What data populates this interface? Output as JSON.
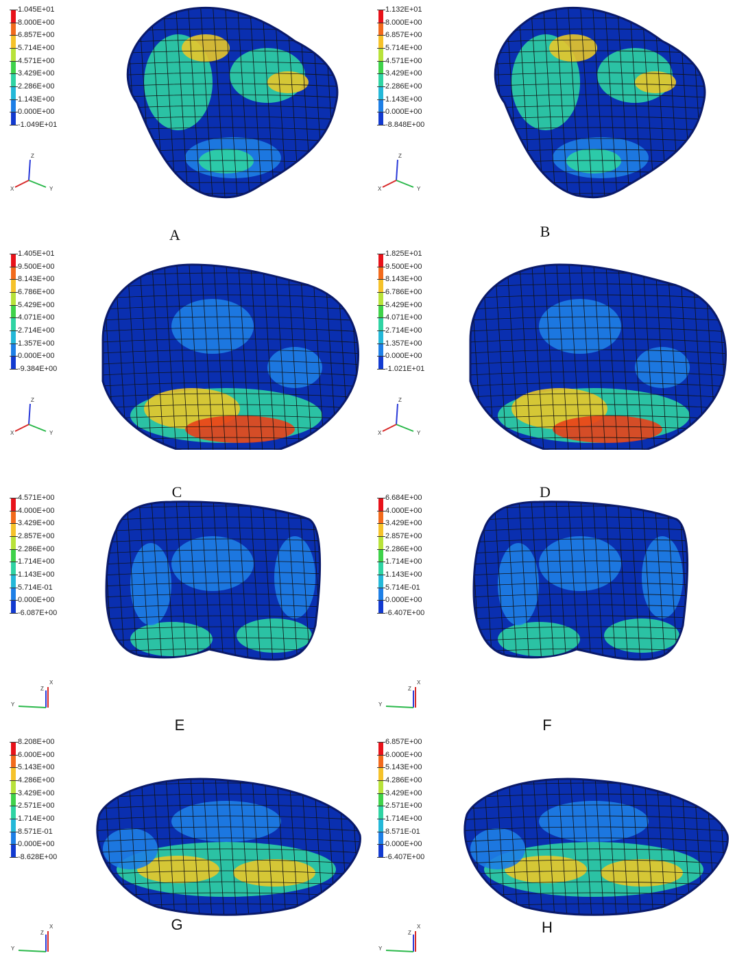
{
  "panels": [
    {
      "id": "A",
      "caption": "A",
      "caption_style": "serif",
      "view": "zy",
      "shape": "tilted",
      "legend": [
        "1.045E+01",
        "8.000E+00",
        "6.857E+00",
        "5.714E+00",
        "4.571E+00",
        "3.429E+00",
        "2.286E+00",
        "1.143E+00",
        "0.000E+00",
        "-1.049E+01"
      ]
    },
    {
      "id": "B",
      "caption": "B",
      "caption_style": "serif",
      "view": "zy",
      "shape": "tilted",
      "legend": [
        "1.132E+01",
        "8.000E+00",
        "6.857E+00",
        "5.714E+00",
        "4.571E+00",
        "3.429E+00",
        "2.286E+00",
        "1.143E+00",
        "0.000E+00",
        "-8.848E+00"
      ]
    },
    {
      "id": "C",
      "caption": "C",
      "caption_style": "serif",
      "view": "zy",
      "shape": "oval",
      "legend": [
        "1.405E+01",
        "9.500E+00",
        "8.143E+00",
        "6.786E+00",
        "5.429E+00",
        "4.071E+00",
        "2.714E+00",
        "1.357E+00",
        "0.000E+00",
        "-9.384E+00"
      ]
    },
    {
      "id": "D",
      "caption": "D",
      "caption_style": "serif",
      "view": "zy",
      "shape": "oval",
      "legend": [
        "1.825E+01",
        "9.500E+00",
        "8.143E+00",
        "6.786E+00",
        "5.429E+00",
        "4.071E+00",
        "2.714E+00",
        "1.357E+00",
        "0.000E+00",
        "-1.021E+01"
      ]
    },
    {
      "id": "E",
      "caption": "E",
      "caption_style": "sans",
      "view": "yzx",
      "shape": "kidney",
      "legend": [
        "4.571E+00",
        "4.000E+00",
        "3.429E+00",
        "2.857E+00",
        "2.286E+00",
        "1.714E+00",
        "1.143E+00",
        "5.714E-01",
        "0.000E+00",
        "-6.087E+00"
      ]
    },
    {
      "id": "F",
      "caption": "F",
      "caption_style": "sans",
      "view": "yzx",
      "shape": "kidney",
      "legend": [
        "6.684E+00",
        "4.000E+00",
        "3.429E+00",
        "2.857E+00",
        "2.286E+00",
        "1.714E+00",
        "1.143E+00",
        "5.714E-01",
        "0.000E+00",
        "-6.407E+00"
      ]
    },
    {
      "id": "G",
      "caption": "G",
      "caption_style": "sans",
      "view": "yzx",
      "shape": "flat",
      "legend": [
        "8.208E+00",
        "6.000E+00",
        "5.143E+00",
        "4.286E+00",
        "3.429E+00",
        "2.571E+00",
        "1.714E+00",
        "8.571E-01",
        "0.000E+00",
        "-8.628E+00"
      ]
    },
    {
      "id": "H",
      "caption": "H",
      "caption_style": "sans",
      "view": "yzx",
      "shape": "flat",
      "legend": [
        "6.857E+00",
        "6.000E+00",
        "5.143E+00",
        "4.286E+00",
        "3.429E+00",
        "2.571E+00",
        "1.714E+00",
        "8.571E-01",
        "0.000E+00",
        "-6.407E+00"
      ]
    }
  ],
  "axis_letters": {
    "x": "X",
    "y": "Y",
    "z": "Z"
  },
  "colorbar_colors": [
    "#e8121a",
    "#f26a1c",
    "#f5c22a",
    "#b8e23a",
    "#3fd24a",
    "#2fd3a3",
    "#24b8d8",
    "#1e7fe6",
    "#123ad0"
  ],
  "mesh_colors": {
    "base": "#0a2fb0",
    "edge": "#0a1a6a",
    "low": "#1e7fe6",
    "mid": "#2fd3a3",
    "high": "#e8c82a",
    "peak": "#e8401a"
  }
}
